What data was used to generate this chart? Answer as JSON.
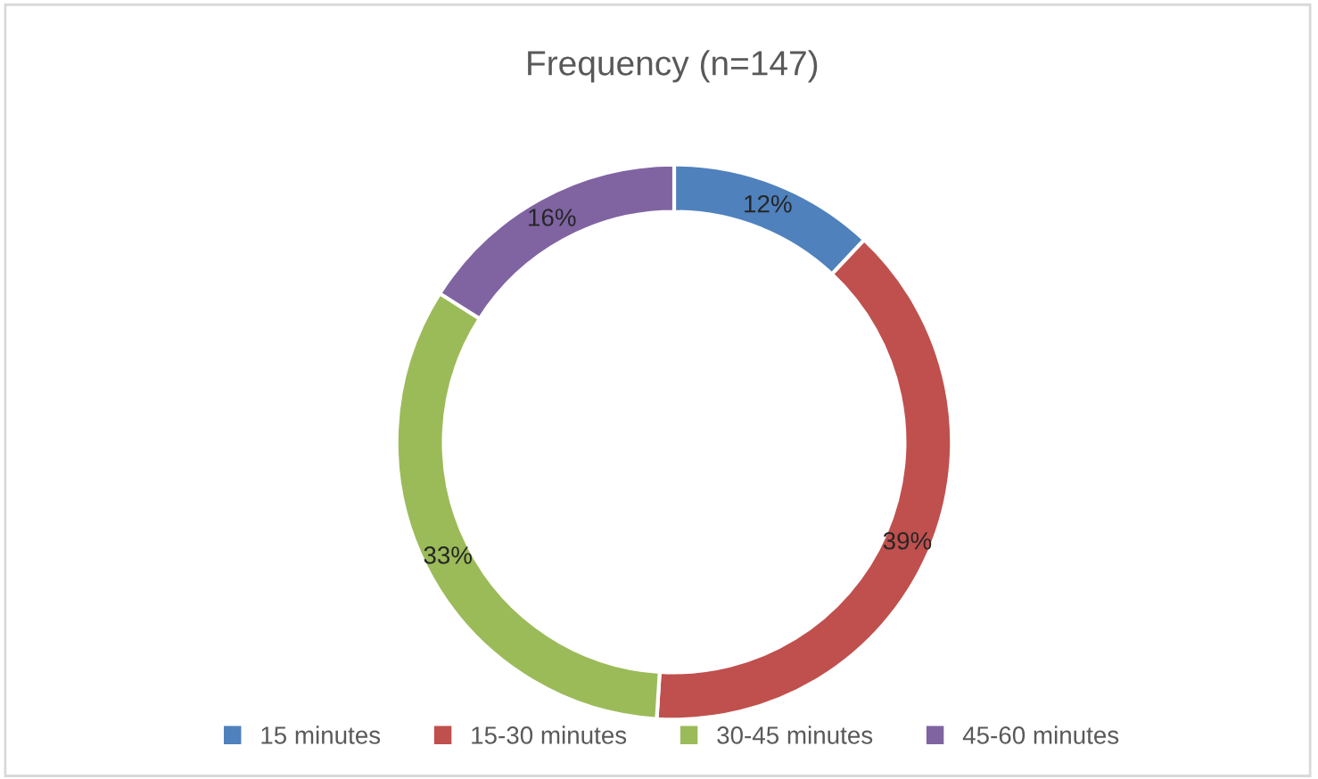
{
  "chart_data": {
    "type": "donut",
    "title": "Frequency (n=147)",
    "categories": [
      "15 minutes",
      "15-30 minutes",
      "30-45 minutes",
      "45-60 minutes"
    ],
    "values": [
      12,
      39,
      33,
      16
    ],
    "colors": [
      "#4f81bd",
      "#c0504d",
      "#9bbb59",
      "#8064a2"
    ],
    "value_labels": [
      "12%",
      "39%",
      "33%",
      "16%"
    ],
    "legend": "bottom"
  }
}
